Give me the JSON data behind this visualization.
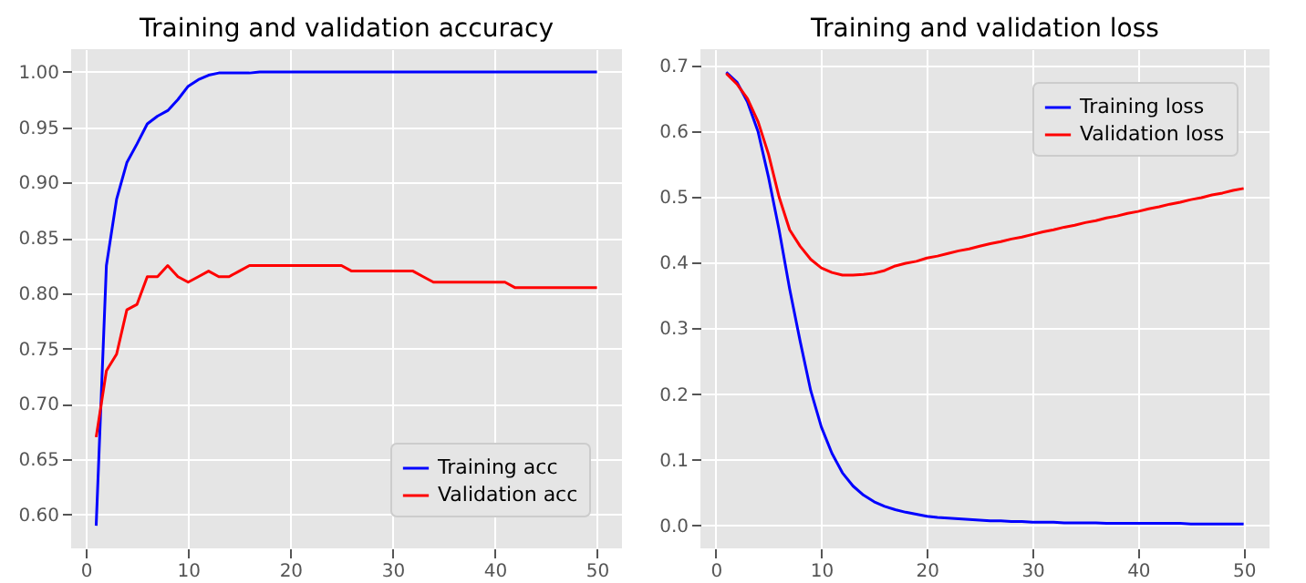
{
  "chart_data": [
    {
      "type": "line",
      "title": "Training and validation accuracy",
      "x": [
        1,
        2,
        3,
        4,
        5,
        6,
        7,
        8,
        9,
        10,
        11,
        12,
        13,
        14,
        15,
        16,
        17,
        18,
        19,
        20,
        21,
        22,
        23,
        24,
        25,
        26,
        27,
        28,
        29,
        30,
        31,
        32,
        33,
        34,
        35,
        36,
        37,
        38,
        39,
        40,
        41,
        42,
        43,
        44,
        45,
        46,
        47,
        48,
        49,
        50
      ],
      "series": [
        {
          "name": "Training acc",
          "color": "#0000ff",
          "values": [
            0.59,
            0.825,
            0.885,
            0.918,
            0.935,
            0.953,
            0.96,
            0.965,
            0.975,
            0.987,
            0.993,
            0.997,
            0.999,
            0.999,
            0.999,
            0.999,
            1.0,
            1.0,
            1.0,
            1.0,
            1.0,
            1.0,
            1.0,
            1.0,
            1.0,
            1.0,
            1.0,
            1.0,
            1.0,
            1.0,
            1.0,
            1.0,
            1.0,
            1.0,
            1.0,
            1.0,
            1.0,
            1.0,
            1.0,
            1.0,
            1.0,
            1.0,
            1.0,
            1.0,
            1.0,
            1.0,
            1.0,
            1.0,
            1.0,
            1.0
          ]
        },
        {
          "name": "Validation acc",
          "color": "#ff0000",
          "values": [
            0.67,
            0.73,
            0.745,
            0.785,
            0.79,
            0.815,
            0.815,
            0.825,
            0.815,
            0.81,
            0.815,
            0.82,
            0.815,
            0.815,
            0.82,
            0.825,
            0.825,
            0.825,
            0.825,
            0.825,
            0.825,
            0.825,
            0.825,
            0.825,
            0.825,
            0.82,
            0.82,
            0.82,
            0.82,
            0.82,
            0.82,
            0.82,
            0.815,
            0.81,
            0.81,
            0.81,
            0.81,
            0.81,
            0.81,
            0.81,
            0.81,
            0.805,
            0.805,
            0.805,
            0.805,
            0.805,
            0.805,
            0.805,
            0.805,
            0.805
          ]
        }
      ],
      "xlim": [
        -1.45,
        52.45
      ],
      "xticks": [
        0,
        10,
        20,
        30,
        40,
        50
      ],
      "ylim": [
        0.5695,
        1.0205
      ],
      "yticks": [
        {
          "value": 0.6,
          "label": "0.60"
        },
        {
          "value": 0.65,
          "label": "0.65"
        },
        {
          "value": 0.7,
          "label": "0.70"
        },
        {
          "value": 0.75,
          "label": "0.75"
        },
        {
          "value": 0.8,
          "label": "0.80"
        },
        {
          "value": 0.85,
          "label": "0.85"
        },
        {
          "value": 0.9,
          "label": "0.90"
        },
        {
          "value": 0.95,
          "label": "0.95"
        },
        {
          "value": 1.0,
          "label": "1.00"
        }
      ],
      "grid": true,
      "legend": "bottom right"
    },
    {
      "type": "line",
      "title": "Training and validation loss",
      "x": [
        1,
        2,
        3,
        4,
        5,
        6,
        7,
        8,
        9,
        10,
        11,
        12,
        13,
        14,
        15,
        16,
        17,
        18,
        19,
        20,
        21,
        22,
        23,
        24,
        25,
        26,
        27,
        28,
        29,
        30,
        31,
        32,
        33,
        34,
        35,
        36,
        37,
        38,
        39,
        40,
        41,
        42,
        43,
        44,
        45,
        46,
        47,
        48,
        49,
        50
      ],
      "series": [
        {
          "name": "Training loss",
          "color": "#0000ff",
          "values": [
            0.69,
            0.675,
            0.645,
            0.6,
            0.53,
            0.45,
            0.36,
            0.28,
            0.205,
            0.15,
            0.11,
            0.08,
            0.06,
            0.046,
            0.036,
            0.029,
            0.024,
            0.02,
            0.017,
            0.014,
            0.012,
            0.011,
            0.01,
            0.009,
            0.008,
            0.007,
            0.007,
            0.006,
            0.006,
            0.005,
            0.005,
            0.005,
            0.004,
            0.004,
            0.004,
            0.004,
            0.003,
            0.003,
            0.003,
            0.003,
            0.003,
            0.003,
            0.003,
            0.003,
            0.002,
            0.002,
            0.002,
            0.002,
            0.002,
            0.002
          ]
        },
        {
          "name": "Validation loss",
          "color": "#ff0000",
          "values": [
            0.688,
            0.672,
            0.65,
            0.615,
            0.565,
            0.5,
            0.45,
            0.425,
            0.405,
            0.392,
            0.385,
            0.381,
            0.381,
            0.382,
            0.384,
            0.388,
            0.395,
            0.399,
            0.402,
            0.407,
            0.41,
            0.414,
            0.418,
            0.421,
            0.425,
            0.429,
            0.432,
            0.436,
            0.439,
            0.443,
            0.447,
            0.45,
            0.454,
            0.457,
            0.461,
            0.464,
            0.468,
            0.471,
            0.475,
            0.478,
            0.482,
            0.485,
            0.489,
            0.492,
            0.496,
            0.499,
            0.503,
            0.506,
            0.51,
            0.513
          ]
        }
      ],
      "xlim": [
        -1.45,
        52.45
      ],
      "xticks": [
        0,
        10,
        20,
        30,
        40,
        50
      ],
      "ylim": [
        -0.035,
        0.725
      ],
      "yticks": [
        {
          "value": 0,
          "label": "0.0"
        },
        {
          "value": 0.1,
          "label": "0.1"
        },
        {
          "value": 0.2,
          "label": "0.2"
        },
        {
          "value": 0.3,
          "label": "0.3"
        },
        {
          "value": 0.4,
          "label": "0.4"
        },
        {
          "value": 0.5,
          "label": "0.5"
        },
        {
          "value": 0.6,
          "label": "0.6"
        },
        {
          "value": 0.7,
          "label": "0.7"
        }
      ],
      "grid": true,
      "legend": "top right"
    }
  ]
}
